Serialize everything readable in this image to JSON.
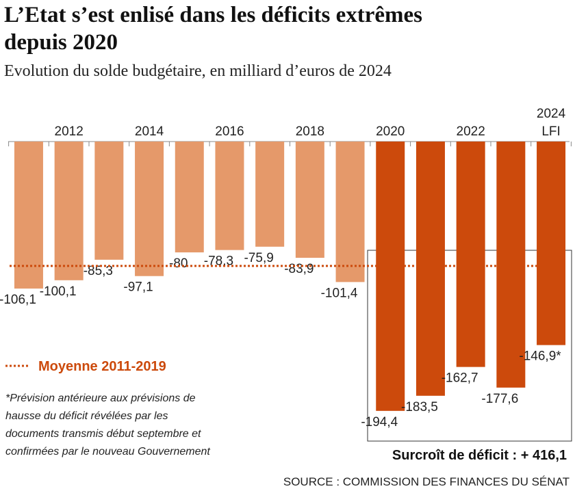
{
  "chart_data": {
    "type": "bar",
    "title": [
      "L’Etat s’est enlisé dans les déficits extrêmes",
      "depuis 2020"
    ],
    "subtitle": "Evolution du solde budgétaire, en milliard d’euros de 2024",
    "categories": [
      null,
      "2012",
      null,
      "2014",
      null,
      "2016",
      null,
      "2018",
      null,
      "2020",
      null,
      "2022",
      null,
      "2024 LFI"
    ],
    "values": [
      -106.1,
      -100.1,
      -85.3,
      -97.1,
      -80,
      -78.3,
      -75.9,
      -83.9,
      -101.4,
      -194.4,
      -183.5,
      -162.7,
      -177.6,
      -146.9
    ],
    "value_labels": [
      "-106,1",
      "-100,1",
      "-85,3",
      "-97,1",
      "-80",
      "-78,3",
      "-75,9",
      "-83,9",
      "-101,4",
      "-194,4",
      "-183,5",
      "-162,7",
      "-177,6",
      "-146,9*"
    ],
    "colors": [
      "#e5996a",
      "#e5996a",
      "#e5996a",
      "#e5996a",
      "#e5996a",
      "#e5996a",
      "#e5996a",
      "#e5996a",
      "#e5996a",
      "#cc4a0c",
      "#cc4a0c",
      "#cc4a0c",
      "#cc4a0c",
      "#cc4a0c"
    ],
    "ylim": [
      -220,
      0
    ],
    "average": {
      "label": "Moyenne 2011-2019",
      "value": -89.8,
      "color": "#cc4a0c"
    },
    "box_note": "Surcroît de déficit : + 416,1",
    "footnote": [
      "*Prévision antérieure aux prévisions de",
      "hausse du déficit révélées par les",
      "documents transmis début septembre et",
      "confirmées par le nouveau Gouvernement"
    ],
    "source": "SOURCE : COMMISSION DES FINANCES DU SÉNAT"
  }
}
